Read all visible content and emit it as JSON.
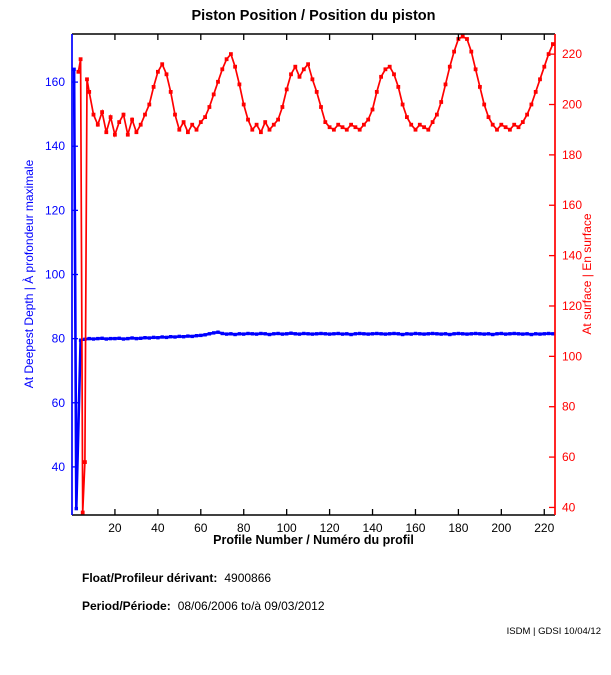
{
  "footer": {
    "float_label": "Float/Profileur dérivant:",
    "float_value": "4900866",
    "period_label": "Period/Période:",
    "period_value": "08/06/2006 to/à 09/03/2012",
    "credit": "ISDM | GDSI 10/04/12"
  },
  "chart_data": {
    "type": "line",
    "title": "Piston Position / Position du piston",
    "xlabel": "Profile Number / Numéro du profil",
    "ylabel_left": "At Deepest Depth | À profondeur maximale",
    "ylabel_right": "At surface | En surface",
    "grid": false,
    "legend": "none",
    "x_range": [
      0,
      225
    ],
    "y_left_range": [
      25,
      175
    ],
    "y_right_range": [
      37,
      228
    ],
    "x_ticks": [
      20,
      40,
      60,
      80,
      100,
      120,
      140,
      160,
      180,
      200,
      220
    ],
    "y_left_ticks": [
      40,
      60,
      80,
      100,
      120,
      140,
      160
    ],
    "y_right_ticks": [
      40,
      60,
      80,
      100,
      120,
      140,
      160,
      180,
      200,
      220
    ],
    "colors": {
      "left_axis": "#0000ff",
      "right_axis": "#ff0000",
      "frame": "#000000"
    },
    "series": [
      {
        "id": "deepest-depth",
        "name": "At Deepest Depth | À profondeur maximale",
        "axis": "left",
        "color": "#0000ff",
        "line_width": 2.6,
        "marker_size": 3.4,
        "x": [
          1,
          2,
          4,
          6,
          8,
          10,
          12,
          14,
          16,
          18,
          20,
          22,
          24,
          26,
          28,
          30,
          32,
          34,
          36,
          38,
          40,
          42,
          44,
          46,
          48,
          50,
          52,
          54,
          56,
          58,
          60,
          62,
          64,
          66,
          68,
          70,
          72,
          74,
          76,
          78,
          80,
          82,
          84,
          86,
          88,
          90,
          92,
          94,
          96,
          98,
          100,
          102,
          104,
          106,
          108,
          110,
          112,
          114,
          116,
          118,
          120,
          122,
          124,
          126,
          128,
          130,
          132,
          134,
          136,
          138,
          140,
          142,
          144,
          146,
          148,
          150,
          152,
          154,
          156,
          158,
          160,
          162,
          164,
          166,
          168,
          170,
          172,
          174,
          176,
          178,
          180,
          182,
          184,
          186,
          188,
          190,
          192,
          194,
          196,
          198,
          200,
          202,
          204,
          206,
          208,
          210,
          212,
          214,
          216,
          218,
          220,
          222,
          224
        ],
        "y": [
          164,
          27,
          79.5,
          79.8,
          80,
          79.9,
          80,
          80.1,
          79.9,
          80,
          80,
          80.1,
          79.9,
          80,
          80.2,
          80,
          80.1,
          80.3,
          80.2,
          80.4,
          80.3,
          80.5,
          80.4,
          80.6,
          80.5,
          80.7,
          80.6,
          80.8,
          80.7,
          80.9,
          81,
          81.2,
          81.5,
          81.8,
          82,
          81.6,
          81.4,
          81.5,
          81.3,
          81.5,
          81.4,
          81.6,
          81.5,
          81.4,
          81.6,
          81.5,
          81.3,
          81.5,
          81.6,
          81.4,
          81.5,
          81.7,
          81.5,
          81.4,
          81.6,
          81.5,
          81.4,
          81.5,
          81.6,
          81.5,
          81.4,
          81.5,
          81.6,
          81.4,
          81.5,
          81.3,
          81.5,
          81.6,
          81.5,
          81.4,
          81.5,
          81.6,
          81.5,
          81.4,
          81.5,
          81.6,
          81.5,
          81.3,
          81.5,
          81.4,
          81.6,
          81.5,
          81.4,
          81.5,
          81.6,
          81.5,
          81.4,
          81.5,
          81.3,
          81.5,
          81.6,
          81.5,
          81.4,
          81.5,
          81.6,
          81.5,
          81.4,
          81.5,
          81.3,
          81.5,
          81.6,
          81.4,
          81.5,
          81.6,
          81.5,
          81.4,
          81.5,
          81.3,
          81.5,
          81.4,
          81.5,
          81.6,
          81.5
        ]
      },
      {
        "id": "surface",
        "name": "At surface | En surface",
        "axis": "right",
        "color": "#ff0000",
        "line_width": 1.7,
        "marker_size": 3.8,
        "x": [
          3,
          4,
          5,
          6,
          7,
          8,
          10,
          12,
          14,
          16,
          18,
          20,
          22,
          24,
          26,
          28,
          30,
          32,
          34,
          36,
          38,
          40,
          42,
          44,
          46,
          48,
          50,
          52,
          54,
          56,
          58,
          60,
          62,
          64,
          66,
          68,
          70,
          72,
          74,
          76,
          78,
          80,
          82,
          84,
          86,
          88,
          90,
          92,
          94,
          96,
          98,
          100,
          102,
          104,
          106,
          108,
          110,
          112,
          114,
          116,
          118,
          120,
          122,
          124,
          126,
          128,
          130,
          132,
          134,
          136,
          138,
          140,
          142,
          144,
          146,
          148,
          150,
          152,
          154,
          156,
          158,
          160,
          162,
          164,
          166,
          168,
          170,
          172,
          174,
          176,
          178,
          180,
          182,
          184,
          186,
          188,
          190,
          192,
          194,
          196,
          198,
          200,
          202,
          204,
          206,
          208,
          210,
          212,
          214,
          216,
          218,
          220,
          222,
          224
        ],
        "y": [
          213,
          218,
          38,
          58,
          210,
          205,
          196,
          192,
          197,
          189,
          195,
          188,
          193,
          196,
          188,
          194,
          189,
          192,
          196,
          200,
          207,
          213,
          216,
          212,
          205,
          196,
          190,
          193,
          189,
          192,
          190,
          193,
          195,
          199,
          204,
          209,
          214,
          218,
          220,
          215,
          208,
          200,
          194,
          190,
          192,
          189,
          193,
          190,
          192,
          194,
          199,
          206,
          212,
          215,
          211,
          214,
          216,
          210,
          205,
          199,
          193,
          191,
          190,
          192,
          191,
          190,
          192,
          191,
          190,
          192,
          194,
          198,
          205,
          211,
          214,
          215,
          212,
          207,
          200,
          195,
          192,
          190,
          192,
          191,
          190,
          193,
          196,
          201,
          208,
          215,
          221,
          226,
          227,
          226,
          221,
          214,
          207,
          200,
          195,
          192,
          190,
          192,
          191,
          190,
          192,
          191,
          193,
          196,
          200,
          205,
          210,
          215,
          220,
          224
        ]
      }
    ]
  }
}
